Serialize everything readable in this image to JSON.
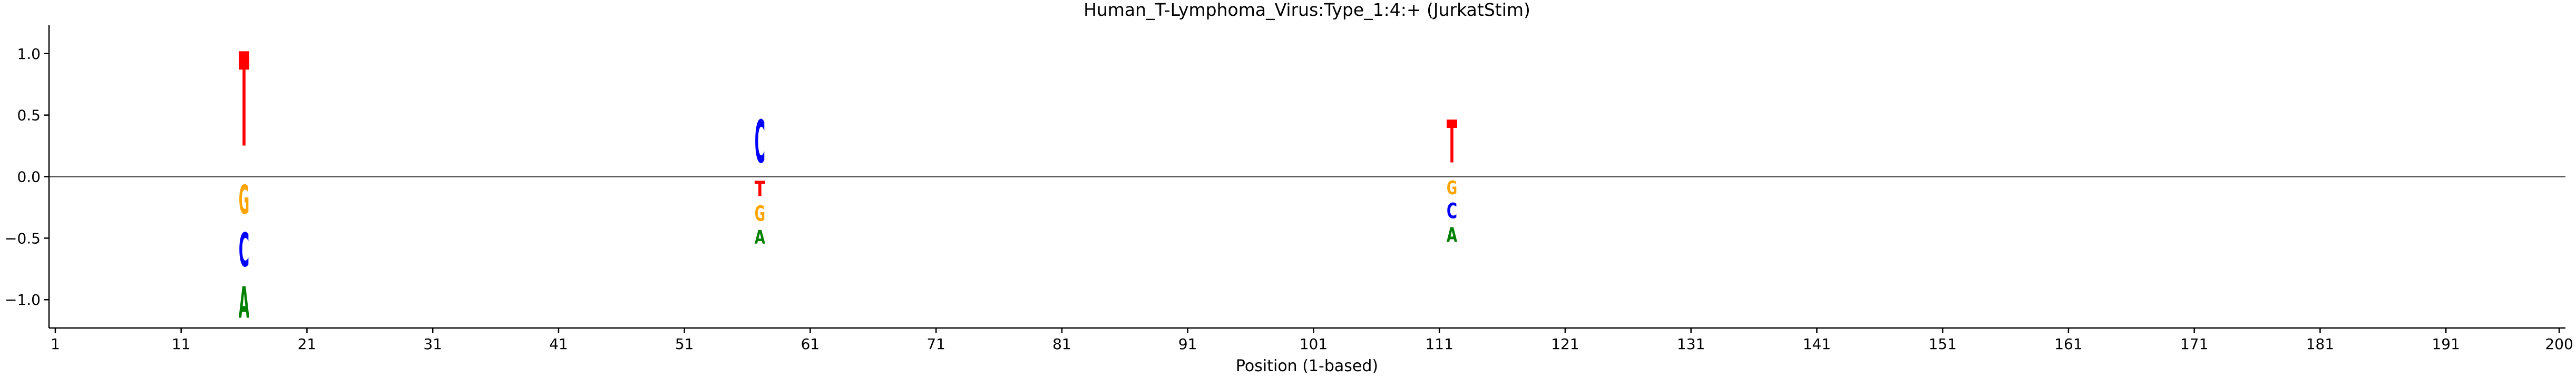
{
  "chart_data": {
    "type": "sequence-logo",
    "title": "Human_T-Lymphoma_Virus:Type_1:4:+  (JurkatStim)",
    "xlabel": "Position (1-based)",
    "ylabel": "",
    "xlim": [
      0.5,
      200.5
    ],
    "ylim": [
      -1.23,
      1.23
    ],
    "xticks": [
      1,
      11,
      21,
      31,
      41,
      51,
      61,
      71,
      81,
      91,
      101,
      111,
      121,
      131,
      141,
      151,
      161,
      171,
      181,
      191,
      200
    ],
    "yticks": [
      -1.0,
      -0.5,
      0.0,
      0.5,
      1.0
    ],
    "ytick_labels": [
      "−1.0",
      "−0.5",
      "0.0",
      "0.5",
      "1.0"
    ],
    "grid": false,
    "colors": {
      "A": "#008000",
      "C": "#0000ff",
      "G": "#ffa500",
      "T": "#ff0000"
    },
    "positions": [
      {
        "position": 16,
        "letters": [
          {
            "base": "T",
            "bottom": 0.0,
            "top": 1.23
          },
          {
            "base": "G",
            "bottom": -0.38,
            "top": 0.0
          },
          {
            "base": "C",
            "bottom": -0.82,
            "top": -0.38
          },
          {
            "base": "A",
            "bottom": -1.23,
            "top": -0.82
          }
        ]
      },
      {
        "position": 57,
        "letters": [
          {
            "base": "C",
            "bottom": 0.0,
            "top": 0.56
          },
          {
            "base": "T",
            "bottom": -0.2,
            "top": 0.0
          },
          {
            "base": "G",
            "bottom": -0.4,
            "top": -0.2
          },
          {
            "base": "A",
            "bottom": -0.58,
            "top": -0.4
          }
        ]
      },
      {
        "position": 112,
        "letters": [
          {
            "base": "T",
            "bottom": 0.0,
            "top": 0.56
          },
          {
            "base": "G",
            "bottom": -0.18,
            "top": 0.0
          },
          {
            "base": "C",
            "bottom": -0.38,
            "top": -0.18
          },
          {
            "base": "A",
            "bottom": -0.57,
            "top": -0.38
          }
        ]
      }
    ]
  }
}
